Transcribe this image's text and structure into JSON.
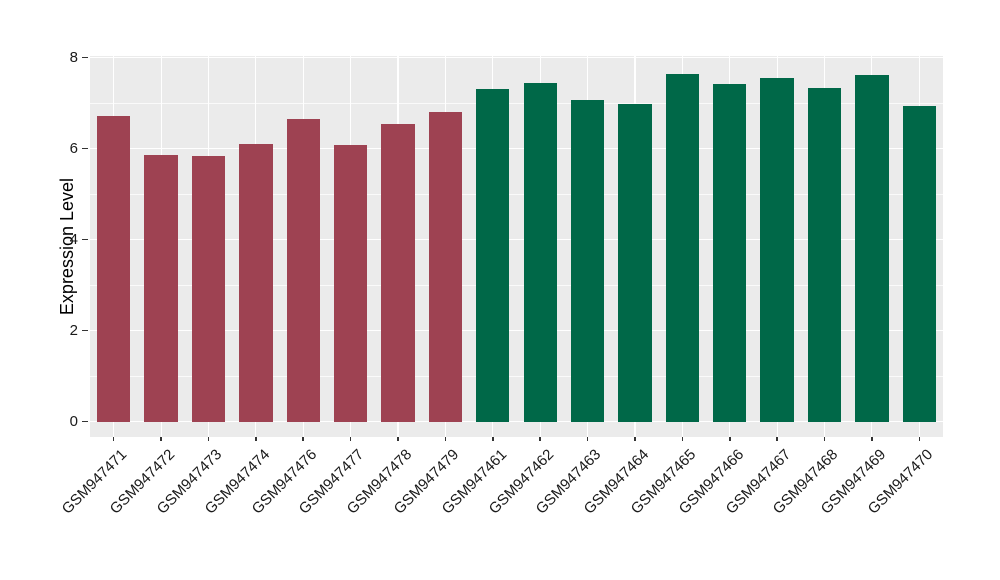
{
  "chart_data": {
    "type": "bar",
    "title": "",
    "xlabel": "",
    "ylabel": "Expression Level",
    "ylim": [
      0,
      8
    ],
    "yticks": [
      0,
      2,
      4,
      6,
      8
    ],
    "minor_gridlines": [
      1,
      3,
      5,
      7
    ],
    "grid": "white major and minor horizontal lines plus vertical lines at bar centers on gray panel",
    "legend_position": "none",
    "categories": [
      "GSM947471",
      "GSM947472",
      "GSM947473",
      "GSM947474",
      "GSM947476",
      "GSM947477",
      "GSM947478",
      "GSM947479",
      "GSM947461",
      "GSM947462",
      "GSM947463",
      "GSM947464",
      "GSM947465",
      "GSM947466",
      "GSM947467",
      "GSM947468",
      "GSM947469",
      "GSM947470"
    ],
    "values": [
      6.71,
      5.86,
      5.83,
      6.11,
      6.65,
      6.08,
      6.55,
      6.81,
      7.31,
      7.43,
      7.07,
      6.99,
      7.63,
      7.42,
      7.55,
      7.33,
      7.61,
      6.93
    ],
    "bar_colors": [
      "#9E4252",
      "#9E4252",
      "#9E4252",
      "#9E4252",
      "#9E4252",
      "#9E4252",
      "#9E4252",
      "#9E4252",
      "#006848",
      "#006848",
      "#006848",
      "#006848",
      "#006848",
      "#006848",
      "#006848",
      "#006848",
      "#006848",
      "#006848"
    ]
  },
  "colors": {
    "figure_background": "#FFFFFF",
    "panel_background": "#EBEBEB",
    "gridline": "#FFFFFF",
    "bar_group_red": "#9E4252",
    "bar_group_green": "#006848",
    "axis_text": "#1A1A1A"
  }
}
